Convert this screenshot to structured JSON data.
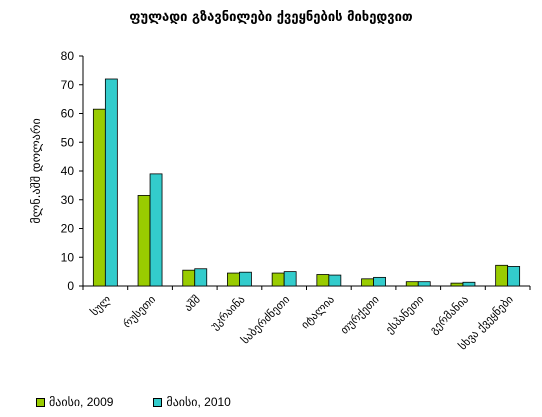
{
  "chart_data": {
    "type": "bar",
    "title": "ფულადი გზავნილები ქვეყნების მიხედვით",
    "ylabel": "მლნ.აშშ დოლარი",
    "xlabel": "",
    "ylim": [
      0,
      80
    ],
    "yticks": [
      0,
      10,
      20,
      30,
      40,
      50,
      60,
      70,
      80
    ],
    "grid": false,
    "legend_position": "bottom",
    "categories": [
      "სულ",
      "რუსეთი",
      "აშშ",
      "უკრაინა",
      "საბერძნეთი",
      "იტალია",
      "თურქეთი",
      "ესპანეთი",
      "გერმანია",
      "სხვა ქვეყნები"
    ],
    "series": [
      {
        "name": "მაისი, 2009",
        "color": "#99cc00",
        "values": [
          61.5,
          31.5,
          5.5,
          4.5,
          4.5,
          4.0,
          2.5,
          1.5,
          1.0,
          7.2
        ]
      },
      {
        "name": "მაისი, 2010",
        "color": "#33cccc",
        "values": [
          72.0,
          39.0,
          6.0,
          4.8,
          5.0,
          3.8,
          3.0,
          1.5,
          1.3,
          6.8
        ]
      }
    ]
  }
}
